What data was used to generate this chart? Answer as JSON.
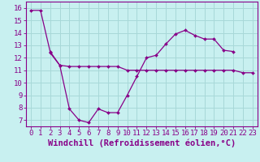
{
  "xlabel": "Windchill (Refroidissement éolien,°C)",
  "x_values": [
    0,
    1,
    2,
    3,
    4,
    5,
    6,
    7,
    8,
    9,
    10,
    11,
    12,
    13,
    14,
    15,
    16,
    17,
    18,
    19,
    20,
    21,
    22,
    23
  ],
  "line1_x": [
    0,
    1,
    2,
    3,
    4,
    5,
    6,
    7,
    8,
    9,
    10,
    11,
    12,
    13,
    14,
    15,
    16,
    17,
    18,
    19,
    20,
    21
  ],
  "line1_y": [
    15.8,
    15.8,
    12.5,
    11.4,
    7.9,
    7.0,
    6.8,
    7.9,
    7.6,
    7.6,
    9.0,
    10.5,
    12.0,
    12.2,
    13.1,
    13.9,
    14.2,
    13.8,
    13.5,
    13.5,
    12.6,
    12.5
  ],
  "line2_x": [
    2,
    3,
    4,
    5,
    6,
    7,
    8,
    9,
    10,
    11,
    12,
    13,
    14,
    15,
    16,
    17,
    18,
    19,
    20,
    21,
    22,
    23
  ],
  "line2_y": [
    12.4,
    11.4,
    11.3,
    11.3,
    11.3,
    11.3,
    11.3,
    11.3,
    11.0,
    11.0,
    11.0,
    11.0,
    11.0,
    11.0,
    11.0,
    11.0,
    11.0,
    11.0,
    11.0,
    11.0,
    10.8,
    10.8
  ],
  "line_color": "#880088",
  "bg_color": "#c8f0f0",
  "grid_color": "#a8d8d8",
  "ylim": [
    6.5,
    16.5
  ],
  "yticks": [
    7,
    8,
    9,
    10,
    11,
    12,
    13,
    14,
    15,
    16
  ],
  "xticks": [
    0,
    1,
    2,
    3,
    4,
    5,
    6,
    7,
    8,
    9,
    10,
    11,
    12,
    13,
    14,
    15,
    16,
    17,
    18,
    19,
    20,
    21,
    22,
    23
  ],
  "xlabel_fontsize": 7.5,
  "tick_fontsize": 6.5
}
